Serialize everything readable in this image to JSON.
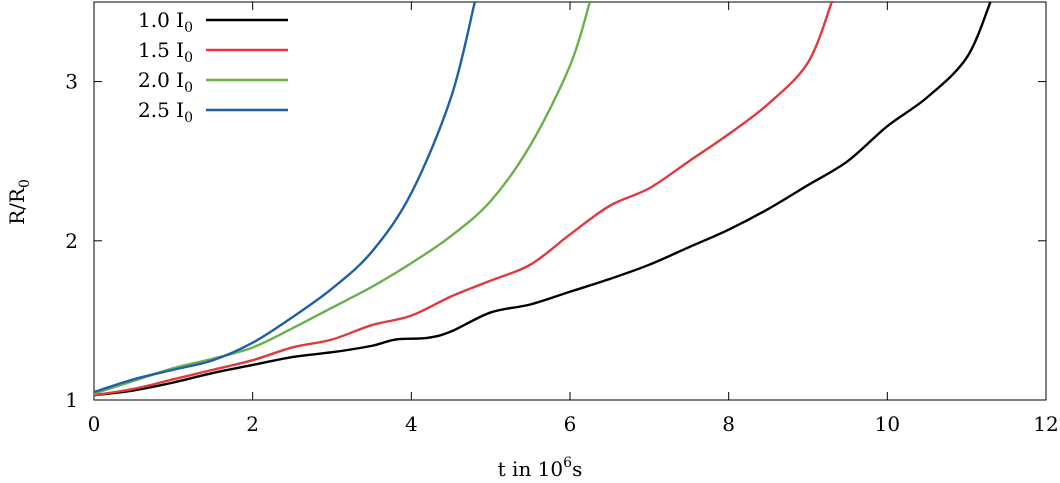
{
  "chart_data": {
    "type": "line",
    "title": "",
    "xlabel": {
      "prefix": "t in 10",
      "sup": "6",
      "suffix": "s"
    },
    "ylabel": {
      "main": "R/R",
      "sub": "0"
    },
    "xlim": [
      0,
      12
    ],
    "ylim": [
      1,
      3.5
    ],
    "xticks": [
      0,
      2,
      4,
      6,
      8,
      10,
      12
    ],
    "yticks": [
      1,
      2,
      3
    ],
    "grid": false,
    "legend_position": "top-left",
    "series": [
      {
        "name": "1.0 I",
        "name_sub": "0",
        "color": "#000000",
        "points": [
          [
            0,
            1.03
          ],
          [
            0.5,
            1.06
          ],
          [
            1,
            1.11
          ],
          [
            1.5,
            1.17
          ],
          [
            2,
            1.22
          ],
          [
            2.5,
            1.27
          ],
          [
            3,
            1.3
          ],
          [
            3.5,
            1.34
          ],
          [
            3.8,
            1.38
          ],
          [
            4.2,
            1.39
          ],
          [
            4.5,
            1.43
          ],
          [
            5,
            1.55
          ],
          [
            5.5,
            1.6
          ],
          [
            6,
            1.68
          ],
          [
            6.5,
            1.76
          ],
          [
            7,
            1.85
          ],
          [
            7.5,
            1.96
          ],
          [
            8,
            2.07
          ],
          [
            8.5,
            2.2
          ],
          [
            9,
            2.35
          ],
          [
            9.5,
            2.5
          ],
          [
            10,
            2.72
          ],
          [
            10.5,
            2.9
          ],
          [
            11,
            3.15
          ],
          [
            11.3,
            3.5
          ]
        ]
      },
      {
        "name": "1.5 I",
        "name_sub": "0",
        "color": "#e03a3e",
        "points": [
          [
            0,
            1.03
          ],
          [
            0.5,
            1.07
          ],
          [
            1,
            1.13
          ],
          [
            1.5,
            1.19
          ],
          [
            2,
            1.25
          ],
          [
            2.5,
            1.33
          ],
          [
            3,
            1.38
          ],
          [
            3.5,
            1.47
          ],
          [
            4,
            1.53
          ],
          [
            4.5,
            1.65
          ],
          [
            5,
            1.75
          ],
          [
            5.5,
            1.85
          ],
          [
            6,
            2.04
          ],
          [
            6.5,
            2.22
          ],
          [
            7,
            2.33
          ],
          [
            7.5,
            2.5
          ],
          [
            8,
            2.67
          ],
          [
            8.5,
            2.86
          ],
          [
            9,
            3.12
          ],
          [
            9.3,
            3.5
          ]
        ]
      },
      {
        "name": "2.0 I",
        "name_sub": "0",
        "color": "#6ab04c",
        "points": [
          [
            0,
            1.04
          ],
          [
            0.5,
            1.12
          ],
          [
            1,
            1.2
          ],
          [
            1.5,
            1.26
          ],
          [
            2,
            1.33
          ],
          [
            2.5,
            1.45
          ],
          [
            3,
            1.58
          ],
          [
            3.5,
            1.71
          ],
          [
            4,
            1.86
          ],
          [
            4.5,
            2.03
          ],
          [
            5,
            2.25
          ],
          [
            5.5,
            2.6
          ],
          [
            6,
            3.1
          ],
          [
            6.25,
            3.5
          ]
        ]
      },
      {
        "name": "2.5 I",
        "name_sub": "0",
        "color": "#1f5fa8",
        "points": [
          [
            0,
            1.05
          ],
          [
            0.5,
            1.13
          ],
          [
            1,
            1.19
          ],
          [
            1.5,
            1.25
          ],
          [
            2,
            1.36
          ],
          [
            2.5,
            1.52
          ],
          [
            3,
            1.7
          ],
          [
            3.5,
            1.93
          ],
          [
            4,
            2.3
          ],
          [
            4.5,
            2.9
          ],
          [
            4.8,
            3.5
          ]
        ]
      }
    ]
  }
}
